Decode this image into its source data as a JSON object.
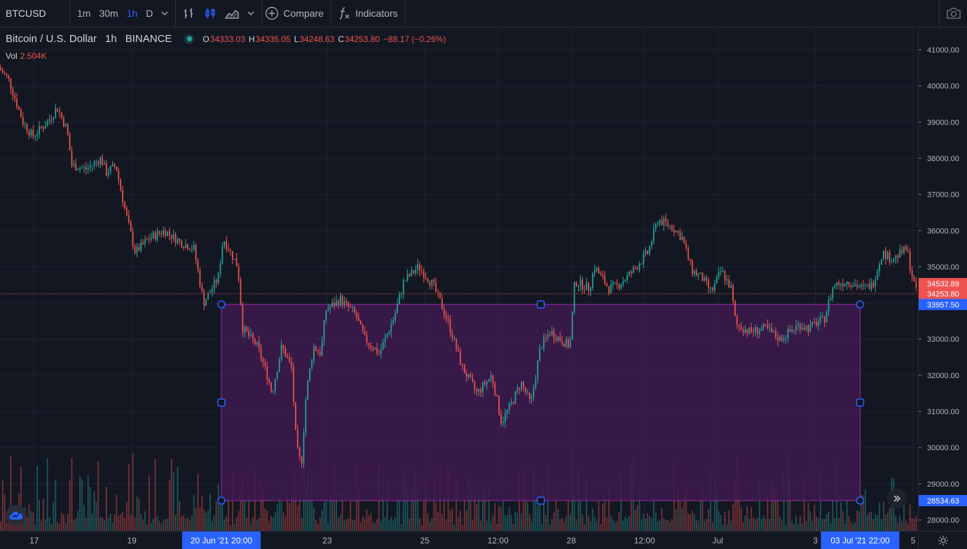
{
  "toolbar": {
    "symbol": "BTCUSD",
    "intervals": [
      {
        "label": "1m",
        "active": false
      },
      {
        "label": "30m",
        "active": false
      },
      {
        "label": "1h",
        "active": true
      },
      {
        "label": "D",
        "active": false
      }
    ],
    "compare_label": "Compare",
    "indicators_label": "Indicators",
    "icons": [
      "chevron-down-icon",
      "bar-chart-icon",
      "candle-chart-icon",
      "area-chart-icon",
      "plus-circle-icon",
      "fx-icon",
      "camera-icon"
    ]
  },
  "legend": {
    "title": "Bitcoin / U.S. Dollar",
    "interval": "1h",
    "exchange": "BINANCE",
    "o_key": "O",
    "o_val": "34333.03",
    "h_key": "H",
    "h_val": "34335.05",
    "l_key": "L",
    "l_val": "34248.63",
    "c_key": "C",
    "c_val": "34253.80",
    "change": "−88.17 (−0.26%)",
    "vol_key": "Vol",
    "vol_val": "2.504K"
  },
  "colors": {
    "background": "#131722",
    "up": "#26a69a",
    "down": "#ef5350",
    "accent": "#2962ff",
    "rectangle_fill": "#3d1a4e",
    "rectangle_border": "#9c27b0"
  },
  "chart_data": {
    "type": "candlestick",
    "symbol": "BTCUSD",
    "ylim": [
      27700,
      41600
    ],
    "y_ticks": [
      28000,
      29000,
      30000,
      31000,
      32000,
      33000,
      34000,
      35000,
      36000,
      37000,
      38000,
      39000,
      40000,
      41000
    ],
    "y_tick_labels": [
      "28000.00",
      "29000.00",
      "30000.00",
      "31000.00",
      "32000.00",
      "33000.00",
      "34000.00",
      "35000.00",
      "36000.00",
      "37000.00",
      "38000.00",
      "39000.00",
      "40000.00",
      "41000.00"
    ],
    "x_tick_labels": [
      {
        "label": "17",
        "day": 17
      },
      {
        "label": "19",
        "day": 19
      },
      {
        "label": "23",
        "day": 23
      },
      {
        "label": "25",
        "day": 25
      },
      {
        "label": "12:00",
        "day": 26.5
      },
      {
        "label": "28",
        "day": 28
      },
      {
        "label": "12:00",
        "day": 29.5
      },
      {
        "label": "Jul",
        "day": 31
      },
      {
        "label": "3",
        "day": 33
      },
      {
        "label": "5",
        "day": 35
      }
    ],
    "x_highlights": [
      {
        "label": "20 Jun '21   20:00",
        "day": 20.8333
      },
      {
        "label": "03 Jul '21   22:00",
        "day": 33.9167
      }
    ],
    "price_labels": [
      {
        "label": "34532.89",
        "value": 34532.89,
        "color": "#ef5350"
      },
      {
        "label": "34253.80",
        "value": 34253.8,
        "color": "#ef5350"
      },
      {
        "label": "33957.50",
        "value": 33957.5,
        "color": "#2962ff"
      },
      {
        "label": "28534.63",
        "value": 28534.63,
        "color": "#2962ff"
      }
    ],
    "last_price": 34253.8,
    "rectangle": {
      "day_start": 20.8333,
      "day_end": 33.9167,
      "price_top": 33957.5,
      "price_bottom": 28534.63
    },
    "x_range_days": [
      16.3,
      35.1
    ],
    "anchors": [
      {
        "day": 16.3,
        "price": 40500
      },
      {
        "day": 16.5,
        "price": 40200
      },
      {
        "day": 16.8,
        "price": 39000
      },
      {
        "day": 17.0,
        "price": 38600
      },
      {
        "day": 17.3,
        "price": 39000
      },
      {
        "day": 17.5,
        "price": 39400
      },
      {
        "day": 17.7,
        "price": 38800
      },
      {
        "day": 17.8,
        "price": 37800
      },
      {
        "day": 18.1,
        "price": 37700
      },
      {
        "day": 18.4,
        "price": 38000
      },
      {
        "day": 18.5,
        "price": 37600
      },
      {
        "day": 18.7,
        "price": 37800
      },
      {
        "day": 18.9,
        "price": 36500
      },
      {
        "day": 19.1,
        "price": 35400
      },
      {
        "day": 19.4,
        "price": 35800
      },
      {
        "day": 19.7,
        "price": 36000
      },
      {
        "day": 20.0,
        "price": 35700
      },
      {
        "day": 20.3,
        "price": 35500
      },
      {
        "day": 20.5,
        "price": 34000
      },
      {
        "day": 20.8,
        "price": 34700
      },
      {
        "day": 20.9,
        "price": 35800
      },
      {
        "day": 21.2,
        "price": 35000
      },
      {
        "day": 21.3,
        "price": 33300
      },
      {
        "day": 21.6,
        "price": 32800
      },
      {
        "day": 21.8,
        "price": 32000
      },
      {
        "day": 21.9,
        "price": 31500
      },
      {
        "day": 22.1,
        "price": 32800
      },
      {
        "day": 22.3,
        "price": 32200
      },
      {
        "day": 22.4,
        "price": 30000
      },
      {
        "day": 22.5,
        "price": 29500
      },
      {
        "day": 22.6,
        "price": 31500
      },
      {
        "day": 22.75,
        "price": 32800
      },
      {
        "day": 22.9,
        "price": 32600
      },
      {
        "day": 23.0,
        "price": 33800
      },
      {
        "day": 23.3,
        "price": 34100
      },
      {
        "day": 23.6,
        "price": 33700
      },
      {
        "day": 23.8,
        "price": 33000
      },
      {
        "day": 24.1,
        "price": 32600
      },
      {
        "day": 24.4,
        "price": 33600
      },
      {
        "day": 24.6,
        "price": 34600
      },
      {
        "day": 24.9,
        "price": 35000
      },
      {
        "day": 25.2,
        "price": 34500
      },
      {
        "day": 25.5,
        "price": 33500
      },
      {
        "day": 25.8,
        "price": 32200
      },
      {
        "day": 26.1,
        "price": 31500
      },
      {
        "day": 26.4,
        "price": 32000
      },
      {
        "day": 26.6,
        "price": 30700
      },
      {
        "day": 26.8,
        "price": 31200
      },
      {
        "day": 27.0,
        "price": 31800
      },
      {
        "day": 27.2,
        "price": 31200
      },
      {
        "day": 27.4,
        "price": 32800
      },
      {
        "day": 27.6,
        "price": 33200
      },
      {
        "day": 27.8,
        "price": 33000
      },
      {
        "day": 28.0,
        "price": 32800
      },
      {
        "day": 28.1,
        "price": 34600
      },
      {
        "day": 28.4,
        "price": 34400
      },
      {
        "day": 28.5,
        "price": 35000
      },
      {
        "day": 28.8,
        "price": 34400
      },
      {
        "day": 29.0,
        "price": 34500
      },
      {
        "day": 29.3,
        "price": 34900
      },
      {
        "day": 29.6,
        "price": 35400
      },
      {
        "day": 29.8,
        "price": 36300
      },
      {
        "day": 30.1,
        "price": 36100
      },
      {
        "day": 30.3,
        "price": 35800
      },
      {
        "day": 30.5,
        "price": 34900
      },
      {
        "day": 30.7,
        "price": 34700
      },
      {
        "day": 30.9,
        "price": 34300
      },
      {
        "day": 31.1,
        "price": 34900
      },
      {
        "day": 31.3,
        "price": 34400
      },
      {
        "day": 31.4,
        "price": 33400
      },
      {
        "day": 31.7,
        "price": 33200
      },
      {
        "day": 32.0,
        "price": 33300
      },
      {
        "day": 32.3,
        "price": 33000
      },
      {
        "day": 32.5,
        "price": 33200
      },
      {
        "day": 32.7,
        "price": 33400
      },
      {
        "day": 32.9,
        "price": 33300
      },
      {
        "day": 33.1,
        "price": 33500
      },
      {
        "day": 33.2,
        "price": 33500
      },
      {
        "day": 33.4,
        "price": 34500
      },
      {
        "day": 33.7,
        "price": 34600
      },
      {
        "day": 34.0,
        "price": 34400
      },
      {
        "day": 34.2,
        "price": 34500
      },
      {
        "day": 34.4,
        "price": 35400
      },
      {
        "day": 34.6,
        "price": 35200
      },
      {
        "day": 34.9,
        "price": 35500
      },
      {
        "day": 35.0,
        "price": 34800
      },
      {
        "day": 35.1,
        "price": 34253.8
      }
    ]
  }
}
